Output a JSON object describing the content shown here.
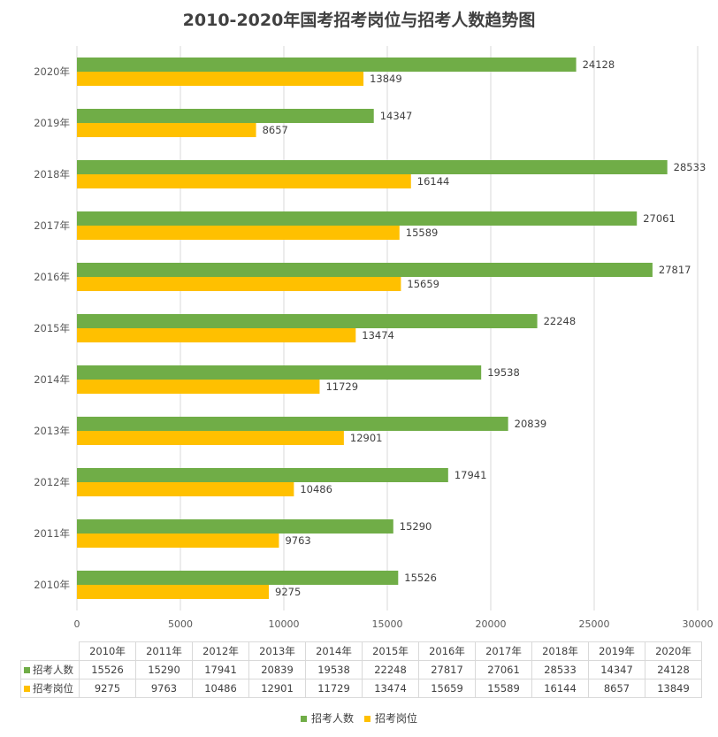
{
  "chart_data": {
    "type": "bar",
    "orientation": "horizontal",
    "title": "2010-2020年国考招考岗位与招考人数趋势图",
    "categories": [
      "2010年",
      "2011年",
      "2012年",
      "2013年",
      "2014年",
      "2015年",
      "2016年",
      "2017年",
      "2018年",
      "2019年",
      "2020年"
    ],
    "series": [
      {
        "name": "招考人数",
        "color": "#70ad47",
        "values": [
          15526,
          15290,
          17941,
          20839,
          19538,
          22248,
          27817,
          27061,
          28533,
          14347,
          24128
        ]
      },
      {
        "name": "招考岗位",
        "color": "#ffc000",
        "values": [
          9275,
          9763,
          10486,
          12901,
          11729,
          13474,
          15659,
          15589,
          16144,
          8657,
          13849
        ]
      }
    ],
    "xlim": [
      0,
      30000
    ],
    "x_ticks": [
      0,
      5000,
      10000,
      15000,
      20000,
      25000,
      30000
    ],
    "grid": true,
    "legend_position": "bottom",
    "data_table": true
  }
}
